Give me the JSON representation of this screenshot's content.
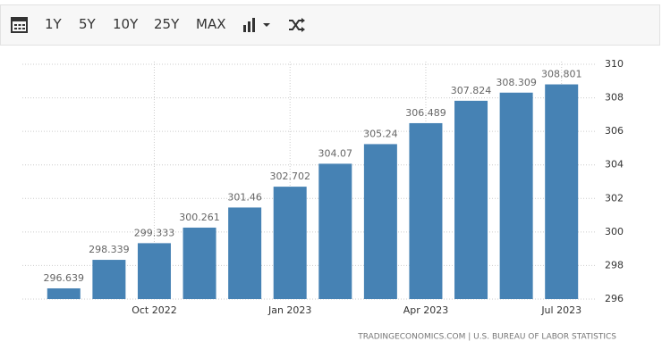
{
  "toolbar": {
    "buttons": [
      "1Y",
      "5Y",
      "10Y",
      "25Y",
      "MAX"
    ]
  },
  "chart_data": {
    "type": "bar",
    "categories": [
      null,
      null,
      "Oct 2022",
      null,
      null,
      "Jan 2023",
      null,
      null,
      "Apr 2023",
      null,
      null,
      "Jul 2023"
    ],
    "values": [
      296.639,
      298.339,
      299.333,
      300.261,
      301.46,
      302.702,
      304.07,
      305.24,
      306.489,
      307.824,
      308.309,
      308.801
    ],
    "color": "#4682b4",
    "ylim": [
      296,
      310
    ],
    "yticks": [
      296,
      298,
      300,
      302,
      304,
      306,
      308,
      310
    ],
    "grid": true,
    "source": "TRADINGECONOMICS.COM | U.S. BUREAU OF LABOR STATISTICS"
  }
}
